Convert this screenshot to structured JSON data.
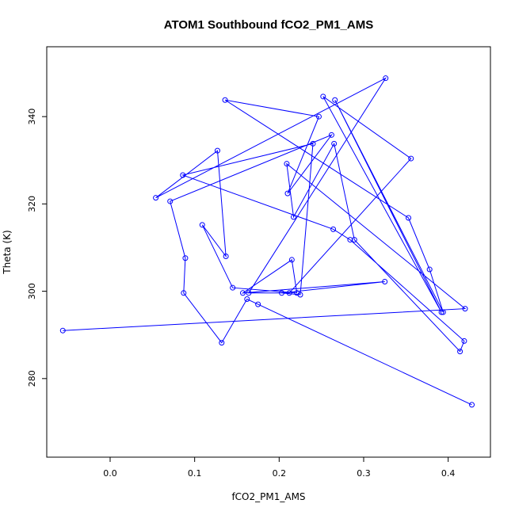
{
  "chart_data": {
    "type": "line",
    "title": "ATOM1 Southbound fCO2_PM1_AMS",
    "xlabel": "fCO2_PM1_AMS",
    "ylabel": "Theta (K)",
    "xlim": [
      -0.075,
      0.45
    ],
    "ylim": [
      262,
      356
    ],
    "x_ticks": [
      0.0,
      0.1,
      0.2,
      0.3,
      0.4
    ],
    "x_tick_labels": [
      "0.0",
      "0.1",
      "0.2",
      "0.3",
      "0.4"
    ],
    "y_ticks": [
      280,
      300,
      320,
      340
    ],
    "y_tick_labels": [
      "280",
      "300",
      "320",
      "340"
    ],
    "grid": false,
    "legend": "none",
    "series_color": "#0000ff",
    "series": [
      {
        "x": [
          0.428,
          0.175,
          0.162,
          0.132,
          0.087,
          0.089,
          0.071,
          0.262,
          0.21,
          0.247,
          0.136,
          0.353,
          0.378,
          0.394,
          0.266,
          0.392,
          0.252,
          0.356,
          0.212,
          0.164,
          0.326,
          0.054,
          0.127,
          0.137,
          0.109,
          0.145,
          0.221,
          0.215,
          0.157,
          0.325,
          0.203,
          0.225,
          0.24,
          0.086,
          0.264,
          0.284,
          0.419,
          0.414,
          0.289,
          0.265,
          0.217,
          0.209,
          0.42,
          -0.056
        ],
        "y": [
          274.0,
          297.0,
          298.2,
          288.2,
          299.6,
          307.6,
          320.6,
          335.8,
          322.4,
          340.0,
          343.8,
          316.8,
          305.0,
          295.2,
          343.8,
          295.2,
          344.6,
          330.4,
          299.6,
          299.6,
          348.8,
          321.4,
          332.2,
          308.0,
          315.2,
          300.8,
          299.6,
          307.2,
          299.6,
          302.2,
          299.6,
          299.2,
          333.8,
          326.6,
          314.2,
          311.8,
          288.6,
          286.2,
          311.8,
          333.8,
          317.0,
          329.2,
          296.0,
          291.0
        ]
      }
    ]
  }
}
